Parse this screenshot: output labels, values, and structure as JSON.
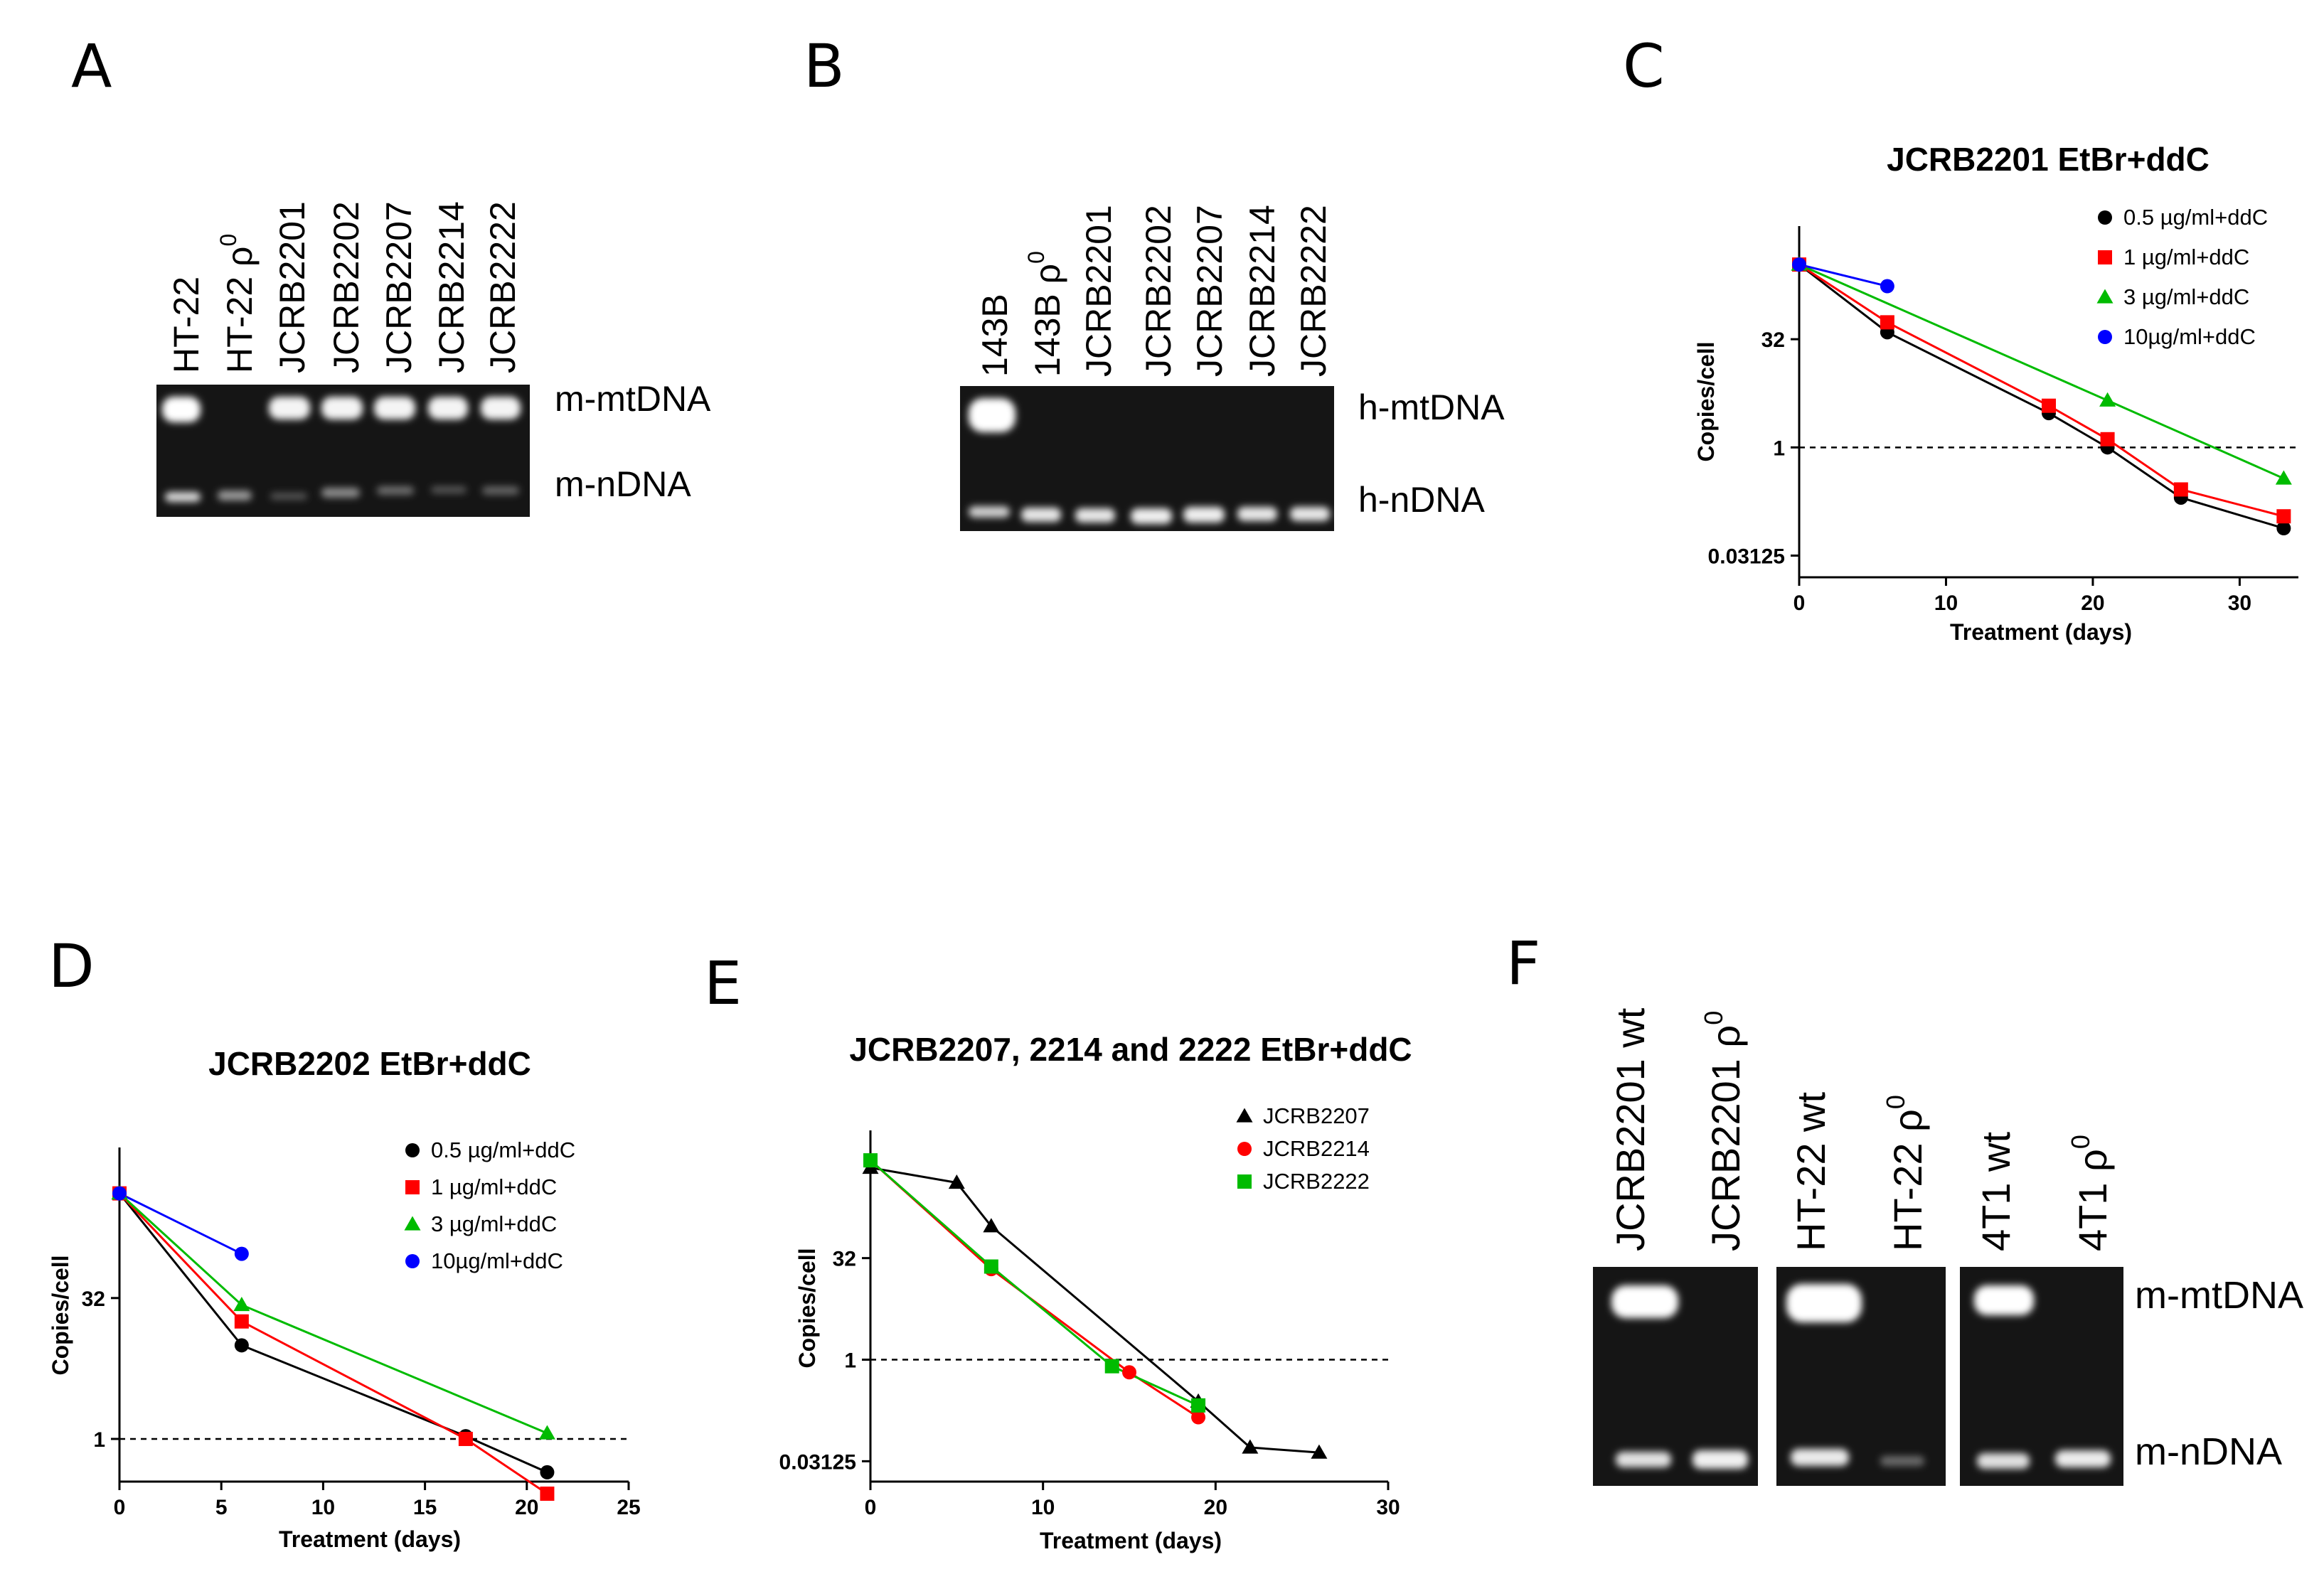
{
  "panels": {
    "A": {
      "label": "A",
      "lanes": [
        "HT-22",
        "HT-22 ρ",
        "JCRB2201",
        "JCRB2202",
        "JCRB2207",
        "JCRB2214",
        "JCRB2222"
      ],
      "superscript": "0",
      "band_labels": [
        "m-mtDNA",
        "m-nDNA"
      ]
    },
    "B": {
      "label": "B",
      "lanes": [
        "143B",
        "143B ρ",
        "JCRB2201",
        "JCRB2202",
        "JCRB2207",
        "JCRB2214",
        "JCRB2222"
      ],
      "superscript": "0",
      "band_labels": [
        "h-mtDNA",
        "h-nDNA"
      ]
    },
    "C": {
      "label": "C"
    },
    "D": {
      "label": "D"
    },
    "E": {
      "label": "E"
    },
    "F": {
      "label": "F",
      "lanes": [
        "JCRB2201 wt",
        "JCRB2201 ρ",
        "HT-22 wt",
        "HT-22 ρ",
        "4T1 wt",
        "4T1 ρ"
      ],
      "superscript": "0",
      "band_labels": [
        "m-mtDNA",
        "m-nDNA"
      ]
    }
  },
  "chart_data": [
    {
      "id": "C",
      "type": "line",
      "title": "JCRB2201 EtBr+ddC",
      "xlabel": "Treatment (days)",
      "ylabel": "Copies/cell",
      "yscale": "log2",
      "xlim": [
        0,
        34
      ],
      "ylim": [
        0.0156,
        1200
      ],
      "xticks": [
        0,
        10,
        20,
        30
      ],
      "yticks": [
        0.03125,
        1,
        32
      ],
      "ytick_labels": [
        "0.03125",
        "1",
        "32"
      ],
      "reference_line_y": 1,
      "series": [
        {
          "name": "0.5 µg/ml+ddC",
          "color": "#000000",
          "marker": "circle",
          "x": [
            0,
            6,
            17,
            21,
            26,
            33
          ],
          "y": [
            350,
            40,
            3,
            1,
            0.2,
            0.075
          ]
        },
        {
          "name": "1 µg/ml+ddC",
          "color": "#ff0000",
          "marker": "square",
          "x": [
            0,
            6,
            17,
            21,
            26,
            33
          ],
          "y": [
            350,
            55,
            3.8,
            1.3,
            0.26,
            0.11
          ]
        },
        {
          "name": "3 µg/ml+ddC",
          "color": "#00bb00",
          "marker": "triangle",
          "x": [
            0,
            21,
            33
          ],
          "y": [
            350,
            4.5,
            0.37
          ]
        },
        {
          "name": "10µg/ml+ddC",
          "color": "#0000ff",
          "marker": "circle",
          "x": [
            0,
            6
          ],
          "y": [
            350,
            175
          ]
        }
      ]
    },
    {
      "id": "D",
      "type": "line",
      "title": "JCRB2202 EtBr+ddC",
      "xlabel": "Treatment (days)",
      "ylabel": "Copies/cell",
      "yscale": "log2",
      "xlim": [
        0,
        25
      ],
      "ylim": [
        0.35,
        1300
      ],
      "xticks": [
        0,
        5,
        10,
        15,
        20,
        25
      ],
      "yticks": [
        1,
        32
      ],
      "ytick_labels": [
        "1",
        "32"
      ],
      "reference_line_y": 1,
      "series": [
        {
          "name": "0.5 µg/ml+ddC",
          "color": "#000000",
          "marker": "circle",
          "x": [
            0,
            6,
            17,
            21
          ],
          "y": [
            420,
            10,
            1.07,
            0.44
          ]
        },
        {
          "name": "1 µg/ml+ddC",
          "color": "#ff0000",
          "marker": "square",
          "x": [
            0,
            6,
            17,
            21
          ],
          "y": [
            420,
            18,
            1.0,
            0.26
          ]
        },
        {
          "name": "3 µg/ml+ddC",
          "color": "#00bb00",
          "marker": "triangle",
          "x": [
            0,
            6,
            21
          ],
          "y": [
            420,
            27,
            1.15
          ]
        },
        {
          "name": "10µg/ml+ddC",
          "color": "#0000ff",
          "marker": "circle",
          "x": [
            0,
            6
          ],
          "y": [
            420,
            95
          ]
        }
      ]
    },
    {
      "id": "E",
      "type": "line",
      "title": "JCRB2207, 2214 and 2222 EtBr+ddC",
      "xlabel": "Treatment (days)",
      "ylabel": "Copies/cell",
      "yscale": "log2",
      "xlim": [
        0,
        30
      ],
      "ylim": [
        0.0156,
        2500
      ],
      "xticks": [
        0,
        10,
        20,
        30
      ],
      "yticks": [
        0.03125,
        1,
        32
      ],
      "ytick_labels": [
        "0.03125",
        "1",
        "32"
      ],
      "reference_line_y": 1,
      "series": [
        {
          "name": "JCRB2207",
          "color": "#000000",
          "marker": "triangle",
          "x": [
            0,
            5,
            7,
            19,
            22,
            26
          ],
          "y": [
            700,
            420,
            95,
            0.24,
            0.05,
            0.042
          ]
        },
        {
          "name": "JCRB2214",
          "color": "#ff0000",
          "marker": "circle",
          "x": [
            0,
            7,
            15,
            19
          ],
          "y": [
            900,
            22,
            0.65,
            0.14
          ]
        },
        {
          "name": "JCRB2222",
          "color": "#00bb00",
          "marker": "square",
          "x": [
            0,
            7,
            14,
            19
          ],
          "y": [
            900,
            24,
            0.8,
            0.21
          ]
        }
      ]
    }
  ]
}
